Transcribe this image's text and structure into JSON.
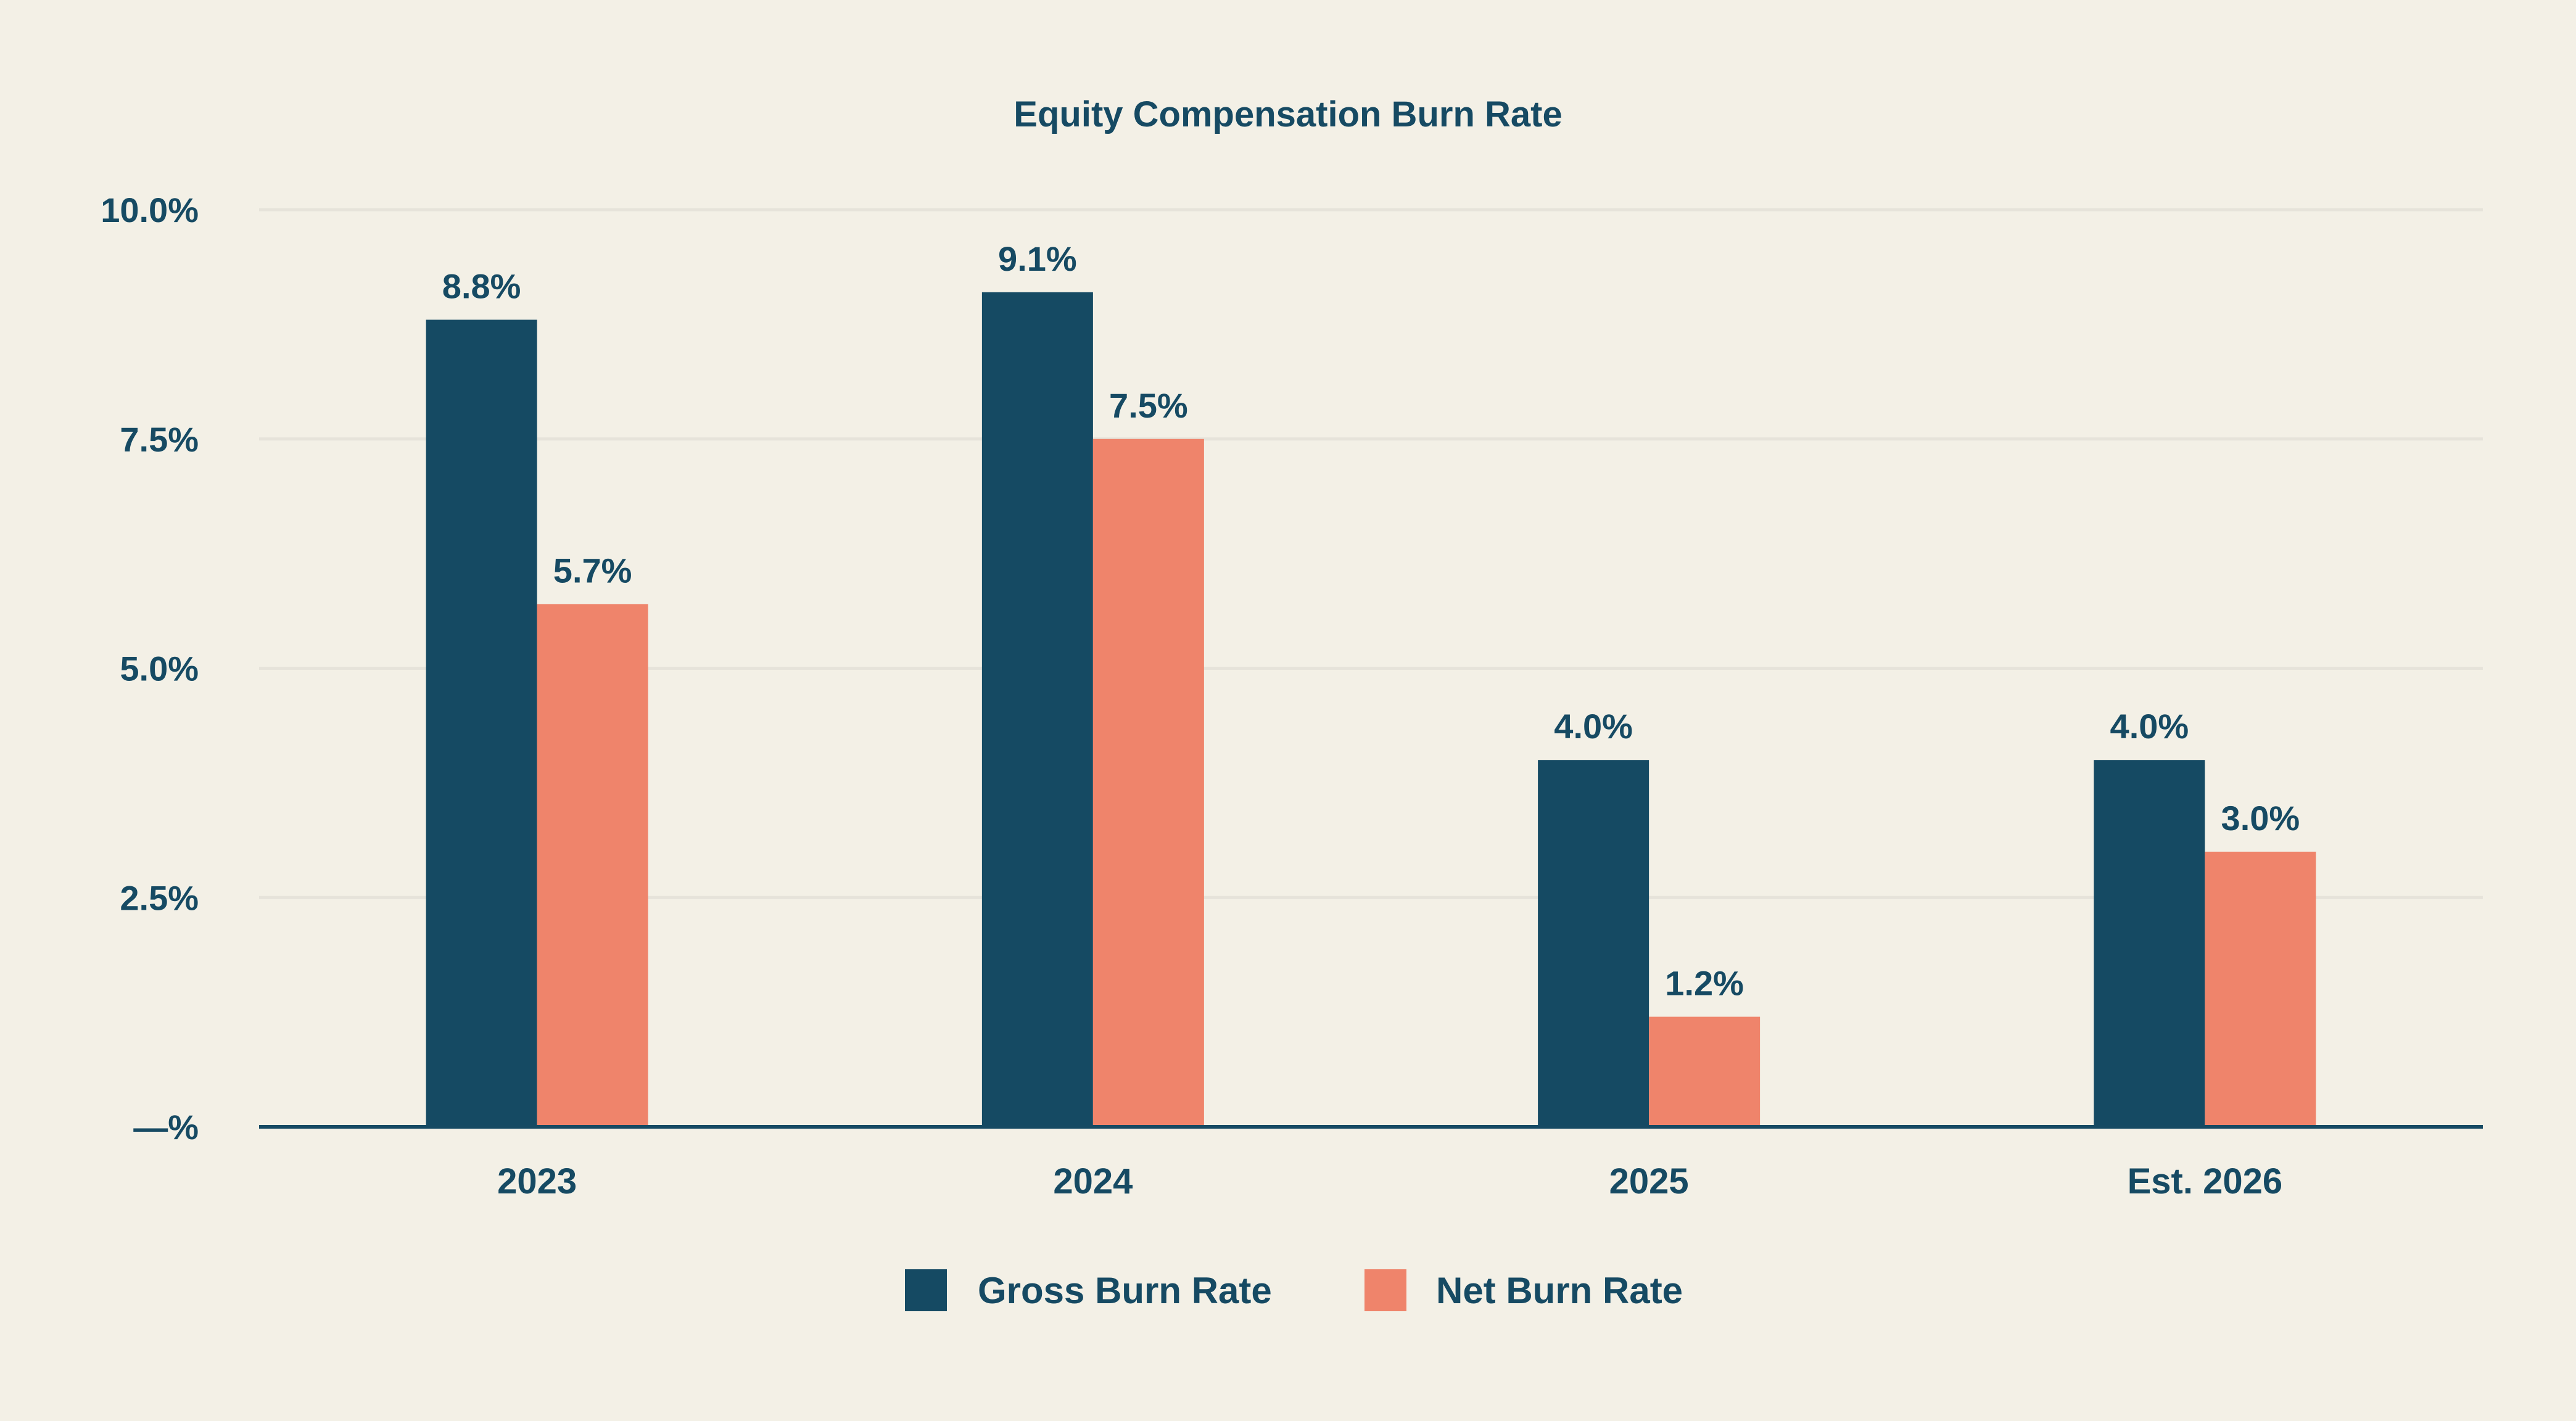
{
  "chart_data": {
    "type": "bar",
    "title": "Equity Compensation Burn Rate",
    "xlabel": "",
    "ylabel": "",
    "categories": [
      "2023",
      "2024",
      "2025",
      "Est. 2026"
    ],
    "series": [
      {
        "name": "Gross Burn Rate",
        "values": [
          8.8,
          9.1,
          4.0,
          4.0
        ],
        "color": "#154a63"
      },
      {
        "name": "Net Burn Rate",
        "values": [
          5.7,
          7.5,
          1.2,
          3.0
        ],
        "color": "#ef846b"
      }
    ],
    "data_labels": [
      [
        "8.8%",
        "9.1%",
        "4.0%",
        "4.0%"
      ],
      [
        "5.7%",
        "7.5%",
        "1.2%",
        "3.0%"
      ]
    ],
    "ylim": [
      0,
      10
    ],
    "yticks": [
      0,
      2.5,
      5,
      7.5,
      10
    ],
    "ytick_labels": [
      "—%",
      "2.5%",
      "5.0%",
      "7.5%",
      "10.0%"
    ],
    "grid": true,
    "legend_position": "bottom-center",
    "colors": {
      "background": "#f3f0e6",
      "text": "#164a63",
      "gridline": "#e6e3da",
      "axis": "#164a63"
    }
  }
}
